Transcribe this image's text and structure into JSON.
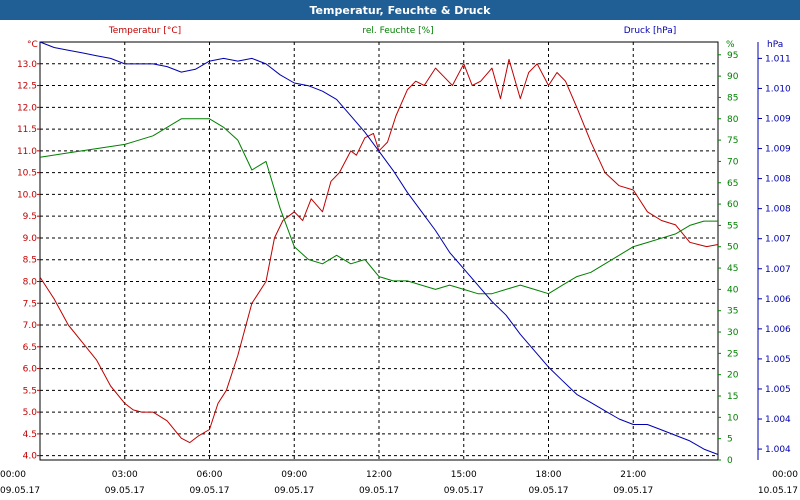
{
  "window": {
    "title": "Temperatur, Feuchte & Druck"
  },
  "chart_data": {
    "type": "line",
    "title": "Temperatur, Feuchte & Druck",
    "series_labels": {
      "temperature": "Temperatur [°C]",
      "humidity": "rel. Feuchte [%]",
      "pressure": "Druck [hPa]"
    },
    "axis_units": {
      "temperature": "°C",
      "humidity": "%",
      "pressure": "hPa"
    },
    "colors": {
      "temperature": "#c00000",
      "humidity": "#008000",
      "pressure": "#0000b0",
      "title_bar": "#1f5f96"
    },
    "grid": true,
    "x_ticks": [
      {
        "hours": 0,
        "time": "00:00",
        "date": "09.05.17"
      },
      {
        "hours": 3,
        "time": "03:00",
        "date": "09.05.17"
      },
      {
        "hours": 6,
        "time": "06:00",
        "date": "09.05.17"
      },
      {
        "hours": 9,
        "time": "09:00",
        "date": "09.05.17"
      },
      {
        "hours": 12,
        "time": "12:00",
        "date": "09.05.17"
      },
      {
        "hours": 15,
        "time": "15:00",
        "date": "09.05.17"
      },
      {
        "hours": 18,
        "time": "18:00",
        "date": "09.05.17"
      },
      {
        "hours": 21,
        "time": "21:00",
        "date": "09.05.17"
      },
      {
        "hours": 24,
        "time": "00:00",
        "date": "10.05.17"
      }
    ],
    "xlim": [
      0,
      24
    ],
    "temperature_axis": {
      "ylim": [
        3.9,
        13.5
      ],
      "ticks": [
        "4.0",
        "4.5",
        "5.0",
        "5.5",
        "6.0",
        "6.5",
        "7.0",
        "7.5",
        "8.0",
        "8.5",
        "9.0",
        "9.5",
        "10.0",
        "10.5",
        "11.0",
        "11.5",
        "12.0",
        "12.5",
        "13.0"
      ]
    },
    "humidity_axis": {
      "ylim": [
        0,
        98
      ],
      "ticks": [
        "0",
        "5",
        "10",
        "15",
        "20",
        "25",
        "30",
        "35",
        "40",
        "45",
        "50",
        "55",
        "60",
        "65",
        "70",
        "75",
        "80",
        "85",
        "90",
        "95"
      ]
    },
    "pressure_axis": {
      "ylim": [
        1003.75,
        1011.4
      ],
      "ticks": [
        {
          "v": 1003.95,
          "label": "1.004"
        },
        {
          "v": 1004.5,
          "label": "1.004"
        },
        {
          "v": 1005.05,
          "label": "1.005"
        },
        {
          "v": 1005.6,
          "label": "1.005"
        },
        {
          "v": 1006.15,
          "label": "1.006"
        },
        {
          "v": 1006.7,
          "label": "1.006"
        },
        {
          "v": 1007.25,
          "label": "1.007"
        },
        {
          "v": 1007.8,
          "label": "1.007"
        },
        {
          "v": 1008.35,
          "label": "1.008"
        },
        {
          "v": 1008.9,
          "label": "1.008"
        },
        {
          "v": 1009.45,
          "label": "1.009"
        },
        {
          "v": 1010.0,
          "label": "1.009"
        },
        {
          "v": 1010.55,
          "label": "1.010"
        },
        {
          "v": 1011.1,
          "label": "1.011"
        },
        {
          "v": 1011.65,
          "label": "1.011"
        }
      ]
    },
    "series": [
      {
        "name": "Temperatur [°C]",
        "key": "temperature",
        "axis": "temperature",
        "x": [
          0,
          0.5,
          1,
          1.5,
          2,
          2.5,
          3,
          3.3,
          3.6,
          4,
          4.5,
          5,
          5.3,
          5.6,
          6,
          6.3,
          6.6,
          7,
          7.5,
          8,
          8.3,
          8.6,
          9,
          9.3,
          9.6,
          10,
          10.3,
          10.6,
          11,
          11.2,
          11.5,
          11.8,
          12,
          12.3,
          12.6,
          13,
          13.3,
          13.6,
          14,
          14.3,
          14.6,
          15,
          15.3,
          15.6,
          16,
          16.3,
          16.6,
          17,
          17.3,
          17.6,
          18,
          18.3,
          18.6,
          19,
          19.5,
          20,
          20.5,
          21,
          21.5,
          22,
          22.5,
          23,
          23.3,
          23.6,
          24
        ],
        "values": [
          8.1,
          7.6,
          7.0,
          6.6,
          6.2,
          5.6,
          5.2,
          5.05,
          5.0,
          5.0,
          4.8,
          4.4,
          4.3,
          4.45,
          4.6,
          5.2,
          5.5,
          6.3,
          7.5,
          8.0,
          9.0,
          9.4,
          9.6,
          9.4,
          9.9,
          9.6,
          10.3,
          10.5,
          11.0,
          10.9,
          11.3,
          11.4,
          11.0,
          11.2,
          11.8,
          12.4,
          12.6,
          12.5,
          12.9,
          12.7,
          12.5,
          13.0,
          12.5,
          12.6,
          12.9,
          12.2,
          13.1,
          12.2,
          12.8,
          13.0,
          12.5,
          12.8,
          12.6,
          12.0,
          11.2,
          10.5,
          10.2,
          10.1,
          9.6,
          9.4,
          9.3,
          8.9,
          8.85,
          8.8,
          8.85
        ]
      },
      {
        "name": "rel. Feuchte [%]",
        "key": "humidity",
        "axis": "humidity",
        "x": [
          0,
          1,
          2,
          3,
          4,
          5,
          5.5,
          6,
          6.5,
          7,
          7.5,
          8,
          8.5,
          9,
          9.5,
          10,
          10.5,
          11,
          11.5,
          12,
          12.5,
          13,
          13.5,
          14,
          14.5,
          15,
          15.5,
          16,
          16.5,
          17,
          17.5,
          18,
          18.5,
          19,
          19.5,
          20,
          20.5,
          21,
          21.5,
          22,
          22.5,
          23,
          23.5,
          24
        ],
        "values": [
          71,
          72,
          73,
          74,
          76,
          80,
          80,
          80,
          78,
          75,
          68,
          70,
          59,
          50,
          47,
          46,
          48,
          46,
          47,
          43,
          42,
          42,
          41,
          40,
          41,
          40,
          39,
          39,
          40,
          41,
          40,
          39,
          41,
          43,
          44,
          46,
          48,
          50,
          51,
          52,
          53,
          55,
          56,
          56
        ]
      },
      {
        "name": "Druck [hPa]",
        "key": "pressure",
        "axis": "pressure",
        "x": [
          0,
          0.5,
          1,
          1.5,
          2,
          2.5,
          3,
          3.5,
          4,
          4.5,
          5,
          5.5,
          6,
          6.5,
          7,
          7.5,
          8,
          8.5,
          9,
          9.5,
          10,
          10.5,
          11,
          11.5,
          12,
          12.5,
          13,
          13.5,
          14,
          14.5,
          15,
          15.5,
          16,
          16.5,
          17,
          17.5,
          18,
          18.5,
          19,
          19.5,
          20,
          20.5,
          21,
          21.5,
          22,
          22.5,
          23,
          23.5,
          24
        ],
        "values": [
          1011.4,
          1011.3,
          1011.25,
          1011.2,
          1011.15,
          1011.1,
          1011.0,
          1011.0,
          1011.0,
          1010.95,
          1010.85,
          1010.9,
          1011.05,
          1011.1,
          1011.05,
          1011.1,
          1011.0,
          1010.8,
          1010.65,
          1010.6,
          1010.5,
          1010.35,
          1010.05,
          1009.75,
          1009.4,
          1009.05,
          1008.65,
          1008.3,
          1007.95,
          1007.55,
          1007.25,
          1006.95,
          1006.65,
          1006.4,
          1006.05,
          1005.75,
          1005.45,
          1005.2,
          1004.95,
          1004.8,
          1004.65,
          1004.5,
          1004.4,
          1004.4,
          1004.3,
          1004.2,
          1004.1,
          1003.95,
          1003.85
        ]
      }
    ]
  }
}
